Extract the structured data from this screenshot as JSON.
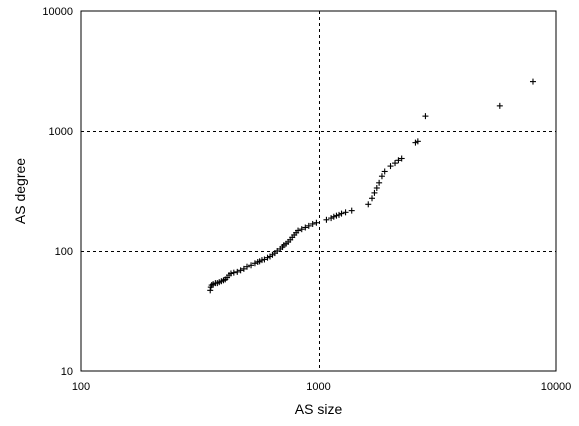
{
  "chart_data": {
    "type": "scatter",
    "title": "",
    "xlabel": "AS size",
    "ylabel": "AS degree",
    "x_scale": "log",
    "y_scale": "log",
    "xlim": [
      100,
      10000
    ],
    "ylim": [
      10,
      10000
    ],
    "x_ticks": [
      "100",
      "1000",
      "10000"
    ],
    "y_ticks": [
      "10",
      "100",
      "1000",
      "10000"
    ],
    "grid": "major lines at 1000 (x) and 100, 1000 (y), dashed",
    "marker": "+",
    "colors": {
      "marker": "#000000",
      "grid": "#000000",
      "background": "#ffffff"
    },
    "points": [
      [
        350,
        47
      ],
      [
        352,
        50
      ],
      [
        355,
        52
      ],
      [
        360,
        53
      ],
      [
        368,
        54
      ],
      [
        375,
        54
      ],
      [
        382,
        55
      ],
      [
        390,
        56
      ],
      [
        398,
        57
      ],
      [
        405,
        58
      ],
      [
        412,
        60
      ],
      [
        420,
        63
      ],
      [
        428,
        65
      ],
      [
        440,
        66
      ],
      [
        455,
        67
      ],
      [
        470,
        69
      ],
      [
        485,
        71
      ],
      [
        500,
        74
      ],
      [
        520,
        76
      ],
      [
        540,
        79
      ],
      [
        555,
        81
      ],
      [
        565,
        82
      ],
      [
        578,
        84
      ],
      [
        592,
        85
      ],
      [
        610,
        88
      ],
      [
        625,
        90
      ],
      [
        640,
        93
      ],
      [
        655,
        96
      ],
      [
        670,
        100
      ],
      [
        690,
        104
      ],
      [
        705,
        108
      ],
      [
        715,
        112
      ],
      [
        730,
        115
      ],
      [
        745,
        119
      ],
      [
        760,
        124
      ],
      [
        775,
        130
      ],
      [
        790,
        136
      ],
      [
        805,
        142
      ],
      [
        820,
        148
      ],
      [
        850,
        152
      ],
      [
        880,
        157
      ],
      [
        910,
        162
      ],
      [
        945,
        168
      ],
      [
        980,
        172
      ],
      [
        1080,
        182
      ],
      [
        1130,
        188
      ],
      [
        1160,
        193
      ],
      [
        1190,
        197
      ],
      [
        1220,
        200
      ],
      [
        1250,
        205
      ],
      [
        1300,
        210
      ],
      [
        1380,
        217
      ],
      [
        1620,
        245
      ],
      [
        1680,
        275
      ],
      [
        1720,
        305
      ],
      [
        1760,
        335
      ],
      [
        1800,
        370
      ],
      [
        1850,
        420
      ],
      [
        1900,
        460
      ],
      [
        2010,
        510
      ],
      [
        2100,
        540
      ],
      [
        2170,
        570
      ],
      [
        2240,
        590
      ],
      [
        2560,
        800
      ],
      [
        2620,
        820
      ],
      [
        2820,
        1330
      ],
      [
        5800,
        1620
      ],
      [
        8000,
        2580
      ]
    ]
  }
}
